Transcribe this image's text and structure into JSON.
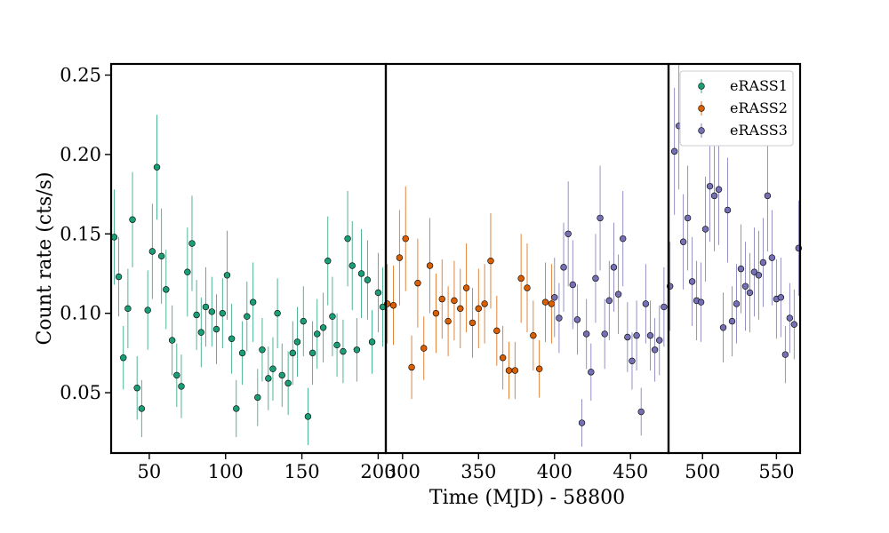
{
  "chart_data": {
    "type": "scatter",
    "title": "",
    "xlabel": "Time (MJD) - 58800",
    "ylabel": "Count rate (cts/s)",
    "ylim": [
      0.012,
      0.257
    ],
    "yticks": [
      0.05,
      0.1,
      0.15,
      0.2,
      0.25
    ],
    "ytick_labels": [
      "0.05",
      "0.10",
      "0.15",
      "0.20",
      "0.25"
    ],
    "legend_position": "top-right",
    "grid": false,
    "panels": [
      {
        "xlim": [
          25,
          205
        ],
        "xticks": [
          50,
          100,
          150,
          200
        ],
        "xtick_labels": [
          "50",
          "100",
          "150",
          "200"
        ]
      },
      {
        "xlim": [
          289,
          475
        ],
        "xticks": [
          300,
          350,
          400,
          450
        ],
        "xtick_labels": [
          "300",
          "350",
          "400",
          "450"
        ]
      },
      {
        "xlim": [
          477,
          566
        ],
        "xticks": [
          500,
          550
        ],
        "xtick_labels": [
          "500",
          "550"
        ]
      }
    ],
    "series": [
      {
        "name": "eRASS1",
        "color": "#1b9e77",
        "x": [
          27,
          30,
          33,
          36,
          39,
          42,
          45,
          49,
          52,
          55,
          58,
          61,
          65,
          68,
          71,
          75,
          78,
          81,
          84,
          87,
          91,
          94,
          98,
          101,
          104,
          107,
          111,
          114,
          118,
          121,
          124,
          128,
          131,
          134,
          137,
          141,
          144,
          147,
          151,
          154,
          157,
          160,
          164,
          167,
          170,
          173,
          177,
          180,
          183,
          186,
          189,
          193,
          196,
          200,
          203
        ],
        "y": [
          0.148,
          0.123,
          0.072,
          0.103,
          0.159,
          0.053,
          0.04,
          0.102,
          0.139,
          0.192,
          0.136,
          0.115,
          0.083,
          0.061,
          0.054,
          0.126,
          0.144,
          0.099,
          0.088,
          0.104,
          0.101,
          0.09,
          0.1,
          0.124,
          0.084,
          0.04,
          0.075,
          0.098,
          0.107,
          0.047,
          0.077,
          0.059,
          0.065,
          0.1,
          0.061,
          0.056,
          0.075,
          0.082,
          0.095,
          0.035,
          0.075,
          0.087,
          0.091,
          0.133,
          0.098,
          0.08,
          0.076,
          0.147,
          0.13,
          0.077,
          0.125,
          0.121,
          0.082,
          0.113,
          0.104
        ],
        "err": [
          0.03,
          0.025,
          0.02,
          0.025,
          0.03,
          0.02,
          0.018,
          0.025,
          0.03,
          0.033,
          0.03,
          0.025,
          0.022,
          0.02,
          0.02,
          0.028,
          0.03,
          0.022,
          0.022,
          0.025,
          0.022,
          0.022,
          0.022,
          0.028,
          0.022,
          0.018,
          0.02,
          0.022,
          0.025,
          0.018,
          0.02,
          0.02,
          0.02,
          0.022,
          0.02,
          0.02,
          0.02,
          0.022,
          0.022,
          0.018,
          0.02,
          0.022,
          0.022,
          0.028,
          0.025,
          0.02,
          0.02,
          0.03,
          0.028,
          0.02,
          0.028,
          0.025,
          0.02,
          0.025,
          0.025
        ]
      },
      {
        "name": "eRASS2",
        "color": "#d95f02",
        "x": [
          290,
          294,
          298,
          302,
          306,
          310,
          314,
          318,
          322,
          326,
          330,
          334,
          338,
          342,
          346,
          350,
          354,
          358,
          362,
          366,
          370,
          374,
          378,
          382,
          386,
          390,
          394,
          398
        ],
        "y": [
          0.106,
          0.105,
          0.135,
          0.147,
          0.066,
          0.119,
          0.078,
          0.13,
          0.1,
          0.109,
          0.095,
          0.108,
          0.103,
          0.116,
          0.094,
          0.103,
          0.106,
          0.133,
          0.089,
          0.072,
          0.064,
          0.064,
          0.122,
          0.116,
          0.086,
          0.065,
          0.107,
          0.106
        ],
        "err": [
          0.025,
          0.025,
          0.03,
          0.033,
          0.02,
          0.028,
          0.02,
          0.03,
          0.025,
          0.025,
          0.022,
          0.025,
          0.025,
          0.028,
          0.022,
          0.025,
          0.025,
          0.03,
          0.022,
          0.02,
          0.018,
          0.018,
          0.028,
          0.028,
          0.022,
          0.018,
          0.025,
          0.025
        ]
      },
      {
        "name": "eRASS3",
        "color": "#7570b3",
        "x": [
          400,
          403,
          406,
          409,
          412,
          415,
          418,
          421,
          424,
          427,
          430,
          433,
          436,
          439,
          442,
          445,
          448,
          451,
          454,
          457,
          460,
          463,
          466,
          469,
          472,
          475,
          478,
          481,
          484,
          487,
          490,
          493,
          496,
          499,
          502,
          505,
          508,
          511,
          514,
          517,
          520,
          523,
          526,
          529,
          532,
          535,
          538,
          541,
          544,
          547,
          550,
          553,
          556,
          559,
          562,
          565
        ],
        "y": [
          0.11,
          0.097,
          0.129,
          0.15,
          0.118,
          0.096,
          0.031,
          0.087,
          0.063,
          0.122,
          0.16,
          0.087,
          0.108,
          0.129,
          0.112,
          0.147,
          0.085,
          0.07,
          0.086,
          0.038,
          0.106,
          0.086,
          0.077,
          0.083,
          0.104,
          0.136,
          0.117,
          0.202,
          0.218,
          0.145,
          0.16,
          0.12,
          0.108,
          0.107,
          0.153,
          0.18,
          0.174,
          0.178,
          0.091,
          0.165,
          0.095,
          0.106,
          0.128,
          0.117,
          0.113,
          0.126,
          0.124,
          0.132,
          0.174,
          0.135,
          0.109,
          0.11,
          0.074,
          0.097,
          0.093,
          0.141
        ],
        "err": [
          0.025,
          0.022,
          0.028,
          0.033,
          0.028,
          0.022,
          0.015,
          0.022,
          0.018,
          0.028,
          0.033,
          0.022,
          0.025,
          0.028,
          0.025,
          0.03,
          0.022,
          0.018,
          0.022,
          0.015,
          0.025,
          0.022,
          0.02,
          0.022,
          0.025,
          0.03,
          0.028,
          0.04,
          0.04,
          0.03,
          0.033,
          0.028,
          0.025,
          0.025,
          0.033,
          0.035,
          0.035,
          0.035,
          0.022,
          0.033,
          0.022,
          0.025,
          0.028,
          0.028,
          0.025,
          0.028,
          0.028,
          0.028,
          0.035,
          0.03,
          0.025,
          0.025,
          0.018,
          0.022,
          0.022,
          0.03
        ]
      }
    ]
  }
}
